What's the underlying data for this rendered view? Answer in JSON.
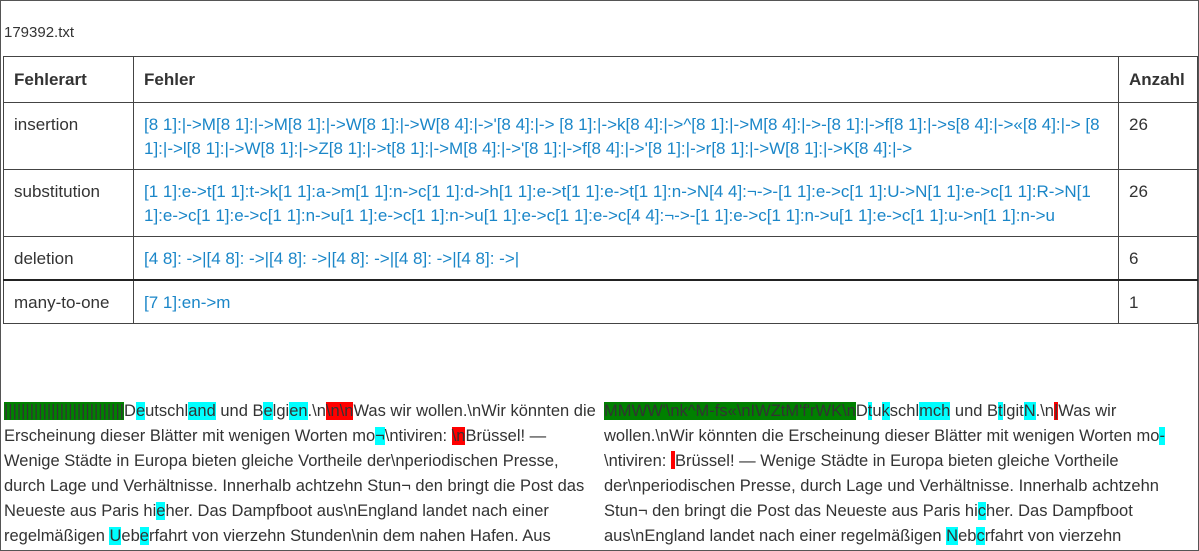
{
  "file_name": "179392.txt",
  "table": {
    "headers": [
      "Fehlerart",
      "Fehler",
      "Anzahl"
    ],
    "rows": [
      {
        "type": "insertion",
        "errors": "[8 1]:|->M[8 1]:|->M[8 1]:|->W[8 1]:|->W[8 4]:|->'[8 4]:|-> [8 1]:|->k[8 4]:|->^[8 1]:|->M[8 4]:|->-[8 1]:|->f[8 1]:|->s[8 4]:|->«[8 4]:|-> [8 1]:|->l[8 1]:|->W[8 1]:|->Z[8 1]:|->t[8 1]:|->M[8 4]:|->'[8 1]:|->f[8 4]:|->'[8 1]:|->r[8 1]:|->W[8 1]:|->K[8 4]:|->",
        "count": "26"
      },
      {
        "type": "substitution",
        "errors": "[1 1]:e->t[1 1]:t->k[1 1]:a->m[1 1]:n->c[1 1]:d->h[1 1]:e->t[1 1]:e->t[1 1]:n->N[4 4]:¬->-[1 1]:e->c[1 1]:U->N[1 1]:e->c[1 1]:R->N[1 1]:e->c[1 1]:e->c[1 1]:n->u[1 1]:e->c[1 1]:n->u[1 1]:e->c[1 1]:e->c[4 4]:¬->-[1 1]:e->c[1 1]:n->u[1 1]:e->c[1 1]:u->n[1 1]:n->u",
        "count": "26"
      },
      {
        "type": "deletion",
        "errors": "[4 8]: ->|[4 8]: ->|[4 8]: ->|[4 8]: ->|[4 8]: ->|[4 8]: ->|",
        "count": "6"
      },
      {
        "type": "many-to-one",
        "errors": "[7 1]:en->m",
        "count": "1"
      }
    ]
  },
  "highlight_colors": {
    "substitution": "#00ffff",
    "deletion": "#ff0000",
    "insertion": "#008000"
  },
  "left_text": [
    {
      "t": "||||||||||||||||||||||||||||",
      "h": "green"
    },
    {
      "t": "D"
    },
    {
      "t": "e",
      "h": "cyan"
    },
    {
      "t": "utschl"
    },
    {
      "t": "and",
      "h": "cyan"
    },
    {
      "t": " und B"
    },
    {
      "t": "e",
      "h": "cyan"
    },
    {
      "t": "lgi"
    },
    {
      "t": "en",
      "h": "cyan"
    },
    {
      "t": ".\\n"
    },
    {
      "t": "\\n\\n",
      "h": "red"
    },
    {
      "t": "Was wir wollen.\\nWir könnten die Erscheinung dieser Blätter mit wenigen Worten mo"
    },
    {
      "t": "¬",
      "h": "cyan"
    },
    {
      "t": "\\ntiviren: "
    },
    {
      "t": "\\n",
      "h": "red"
    },
    {
      "t": "Brüssel! — Wenige Städte in Europa bieten gleiche Vortheile der\\nperiodischen Presse, durch Lage und Verhältnisse. Innerhalb achtzehn Stun¬ den bringt die Post das Neueste aus Paris hi"
    },
    {
      "t": "e",
      "h": "cyan"
    },
    {
      "t": "her. Das Dampfboot aus\\nEngland landet nach einer regelmäßigen "
    },
    {
      "t": "U",
      "h": "cyan"
    },
    {
      "t": "eb"
    },
    {
      "t": "e",
      "h": "cyan"
    },
    {
      "t": "rfahrt von vierzehn Stunden\\nin dem nahen Hafen. Aus"
    }
  ],
  "right_text": [
    {
      "t": "MMWW'\\nk^M-fs«\\nIWZtM'f'rWK\\n",
      "h": "green"
    },
    {
      "t": "D"
    },
    {
      "t": "t",
      "h": "cyan"
    },
    {
      "t": "u"
    },
    {
      "t": "k",
      "h": "cyan"
    },
    {
      "t": "schl"
    },
    {
      "t": "mch",
      "h": "cyan"
    },
    {
      "t": " und B"
    },
    {
      "t": "t",
      "h": "cyan"
    },
    {
      "t": "lgit"
    },
    {
      "t": "N",
      "h": "cyan"
    },
    {
      "t": ".\\n"
    },
    {
      "t": "|",
      "h": "red"
    },
    {
      "t": "Was wir wollen.\\nWir könnten die Erscheinung dieser Blätter mit wenigen Worten mo"
    },
    {
      "t": "-",
      "h": "cyan"
    },
    {
      "t": "\\ntiviren: "
    },
    {
      "t": "",
      "h": "red"
    },
    {
      "t": "Brüssel! — Wenige Städte in Europa bieten gleiche Vortheile der\\nperiodischen Presse, durch Lage und Verhältnisse. Innerhalb achtzehn Stun¬ den bringt die Post das Neueste aus Paris hi"
    },
    {
      "t": "c",
      "h": "cyan"
    },
    {
      "t": "her. Das Dampfboot aus\\nEngland landet nach einer regelmäßigen "
    },
    {
      "t": "N",
      "h": "cyan"
    },
    {
      "t": "eb"
    },
    {
      "t": "c",
      "h": "cyan"
    },
    {
      "t": "rfahrt von vierzehn"
    }
  ]
}
